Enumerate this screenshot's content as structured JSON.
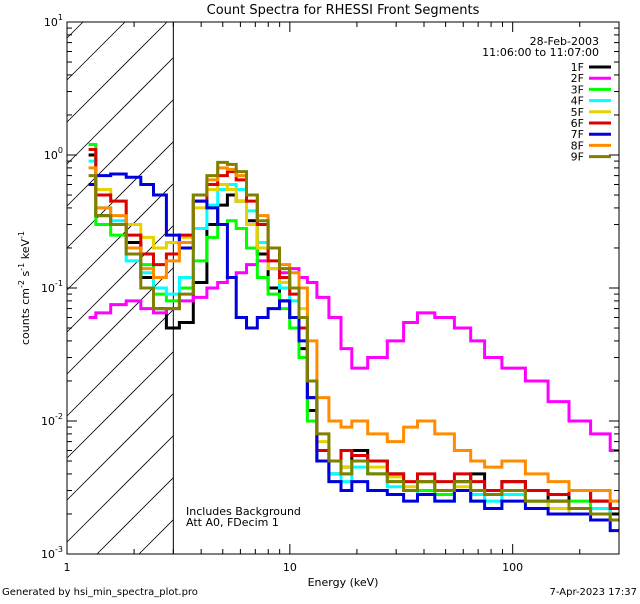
{
  "chart_data": {
    "type": "line",
    "title": "Count Spectra for RHESSI Front Segments",
    "xlabel": "Energy (keV)",
    "ylabel_main": "counts cm",
    "ylabel_exp1": "-2",
    "ylabel_mid": " s",
    "ylabel_exp2": "-1",
    "ylabel_end": " keV",
    "ylabel_exp3": "-1",
    "xscale": "log",
    "yscale": "log",
    "xlim": [
      1,
      300
    ],
    "ylim": [
      0.001,
      10
    ],
    "x_ticks": [
      {
        "value": 1,
        "label": "1"
      },
      {
        "value": 10,
        "label": "10"
      },
      {
        "value": 100,
        "label": "100"
      }
    ],
    "y_ticks": [
      {
        "value": 10,
        "base": "10",
        "exp": "1"
      },
      {
        "value": 1,
        "base": "10",
        "exp": "0"
      },
      {
        "value": 0.1,
        "base": "10",
        "exp": "-1"
      },
      {
        "value": 0.01,
        "base": "10",
        "exp": "-2"
      },
      {
        "value": 0.001,
        "base": "10",
        "exp": "-3"
      }
    ],
    "hatched_region_xmax": 3,
    "annotations": {
      "date": "28-Feb-2003",
      "time_range": "11:06:00 to 11:07:00",
      "background_note": "Includes Background",
      "attenuator_note": "Att A0, FDecim 1"
    },
    "footer": {
      "left": "Generated by hsi_min_spectra_plot.pro",
      "right": "7-Apr-2023 17:37"
    },
    "series": [
      {
        "name": "1F",
        "color": "#000000",
        "x": [
          1.25,
          1.45,
          1.7,
          2.0,
          2.3,
          2.6,
          3.0,
          3.4,
          4.0,
          4.5,
          5.0,
          5.5,
          6.0,
          6.8,
          7.5,
          8.5,
          9.5,
          10.5,
          11.5,
          12.5,
          14,
          16,
          18,
          20,
          25,
          30,
          35,
          40,
          50,
          60,
          70,
          80,
          100,
          130,
          160,
          200,
          250,
          300
        ],
        "y": [
          1.0,
          0.35,
          0.3,
          0.22,
          0.12,
          0.07,
          0.05,
          0.055,
          0.11,
          0.3,
          0.42,
          0.5,
          0.45,
          0.32,
          0.18,
          0.1,
          0.08,
          0.06,
          0.035,
          0.012,
          0.005,
          0.004,
          0.0045,
          0.006,
          0.005,
          0.004,
          0.003,
          0.0035,
          0.003,
          0.0035,
          0.004,
          0.003,
          0.0035,
          0.003,
          0.0025,
          0.003,
          0.0025,
          0.002
        ]
      },
      {
        "name": "2F",
        "color": "#ff00ff",
        "x": [
          1.25,
          1.45,
          1.7,
          2.0,
          2.3,
          2.6,
          3.0,
          3.4,
          4.0,
          4.5,
          5.0,
          5.5,
          6.0,
          6.8,
          7.5,
          8.5,
          9.5,
          10.5,
          11.5,
          12.5,
          14,
          16,
          18,
          20,
          25,
          30,
          35,
          40,
          50,
          60,
          70,
          80,
          100,
          130,
          160,
          200,
          250,
          300
        ],
        "y": [
          0.06,
          0.065,
          0.075,
          0.08,
          0.07,
          0.065,
          0.07,
          0.08,
          0.085,
          0.1,
          0.11,
          0.12,
          0.13,
          0.15,
          0.16,
          0.14,
          0.13,
          0.14,
          0.12,
          0.11,
          0.085,
          0.06,
          0.035,
          0.025,
          0.03,
          0.04,
          0.055,
          0.065,
          0.06,
          0.05,
          0.04,
          0.03,
          0.025,
          0.02,
          0.014,
          0.01,
          0.008,
          0.006
        ]
      },
      {
        "name": "3F",
        "color": "#00ff00",
        "x": [
          1.25,
          1.45,
          1.7,
          2.0,
          2.3,
          2.6,
          3.0,
          3.4,
          4.0,
          4.5,
          5.0,
          5.5,
          6.0,
          6.8,
          7.5,
          8.5,
          9.5,
          10.5,
          11.5,
          12.5,
          14,
          16,
          18,
          20,
          25,
          30,
          35,
          40,
          50,
          60,
          70,
          80,
          100,
          130,
          160,
          200,
          250,
          300
        ],
        "y": [
          1.2,
          0.3,
          0.25,
          0.2,
          0.15,
          0.09,
          0.08,
          0.1,
          0.16,
          0.24,
          0.3,
          0.32,
          0.28,
          0.2,
          0.12,
          0.09,
          0.07,
          0.05,
          0.03,
          0.01,
          0.005,
          0.0035,
          0.004,
          0.005,
          0.004,
          0.0035,
          0.003,
          0.003,
          0.0028,
          0.003,
          0.0025,
          0.0028,
          0.003,
          0.0025,
          0.0022,
          0.0025,
          0.002,
          0.0018
        ]
      },
      {
        "name": "4F",
        "color": "#00ffff",
        "x": [
          1.25,
          1.45,
          1.7,
          2.0,
          2.3,
          2.6,
          3.0,
          3.4,
          4.0,
          4.5,
          5.0,
          5.5,
          6.0,
          6.8,
          7.5,
          8.5,
          9.5,
          10.5,
          11.5,
          12.5,
          14,
          16,
          18,
          20,
          25,
          30,
          35,
          40,
          50,
          60,
          70,
          80,
          100,
          130,
          160,
          200,
          250,
          300
        ],
        "y": [
          0.9,
          0.4,
          0.32,
          0.16,
          0.13,
          0.1,
          0.09,
          0.12,
          0.28,
          0.42,
          0.55,
          0.6,
          0.55,
          0.38,
          0.22,
          0.14,
          0.1,
          0.08,
          0.05,
          0.015,
          0.006,
          0.004,
          0.0035,
          0.0045,
          0.004,
          0.0032,
          0.003,
          0.0028,
          0.0025,
          0.003,
          0.0028,
          0.0025,
          0.0028,
          0.0025,
          0.0022,
          0.002,
          0.0022,
          0.0018
        ]
      },
      {
        "name": "5F",
        "color": "#e6d200",
        "x": [
          1.25,
          1.45,
          1.7,
          2.0,
          2.3,
          2.6,
          3.0,
          3.4,
          4.0,
          4.5,
          5.0,
          5.5,
          6.0,
          6.8,
          7.5,
          8.5,
          9.5,
          10.5,
          11.5,
          12.5,
          14,
          16,
          18,
          20,
          25,
          30,
          35,
          40,
          50,
          60,
          70,
          80,
          100,
          130,
          160,
          200,
          250,
          300
        ],
        "y": [
          0.6,
          0.55,
          0.45,
          0.3,
          0.24,
          0.2,
          0.22,
          0.24,
          0.4,
          0.55,
          0.6,
          0.55,
          0.45,
          0.3,
          0.2,
          0.14,
          0.11,
          0.1,
          0.07,
          0.02,
          0.007,
          0.005,
          0.0045,
          0.005,
          0.0045,
          0.0038,
          0.0032,
          0.0035,
          0.003,
          0.0032,
          0.003,
          0.0028,
          0.003,
          0.0025,
          0.0022,
          0.002,
          0.002,
          0.0018
        ]
      },
      {
        "name": "6F",
        "color": "#dd0000",
        "x": [
          1.25,
          1.45,
          1.7,
          2.0,
          2.3,
          2.6,
          3.0,
          3.4,
          4.0,
          4.5,
          5.0,
          5.5,
          6.0,
          6.8,
          7.5,
          8.5,
          9.5,
          10.5,
          11.5,
          12.5,
          14,
          16,
          18,
          20,
          25,
          30,
          35,
          40,
          50,
          60,
          70,
          80,
          100,
          130,
          160,
          200,
          250,
          300
        ],
        "y": [
          1.1,
          0.5,
          0.45,
          0.25,
          0.18,
          0.15,
          0.18,
          0.25,
          0.45,
          0.6,
          0.7,
          0.75,
          0.65,
          0.45,
          0.3,
          0.16,
          0.12,
          0.09,
          0.05,
          0.015,
          0.006,
          0.005,
          0.006,
          0.0055,
          0.005,
          0.004,
          0.0035,
          0.004,
          0.0035,
          0.004,
          0.0035,
          0.003,
          0.0035,
          0.003,
          0.0028,
          0.003,
          0.0025,
          0.0022
        ]
      },
      {
        "name": "7F",
        "color": "#0000dd",
        "x": [
          1.25,
          1.45,
          1.7,
          2.0,
          2.3,
          2.6,
          3.0,
          3.4,
          4.0,
          4.5,
          5.0,
          5.5,
          6.0,
          6.8,
          7.5,
          8.5,
          9.5,
          10.5,
          11.5,
          12.5,
          14,
          16,
          18,
          20,
          25,
          30,
          35,
          40,
          50,
          60,
          70,
          80,
          100,
          130,
          160,
          200,
          250,
          300
        ],
        "y": [
          0.6,
          0.7,
          0.72,
          0.68,
          0.6,
          0.5,
          0.25,
          0.2,
          0.45,
          0.4,
          0.3,
          0.12,
          0.06,
          0.05,
          0.06,
          0.07,
          0.08,
          0.06,
          0.04,
          0.015,
          0.005,
          0.0035,
          0.003,
          0.0035,
          0.003,
          0.0028,
          0.0025,
          0.0028,
          0.0025,
          0.003,
          0.0025,
          0.0022,
          0.0025,
          0.0022,
          0.002,
          0.002,
          0.0018,
          0.0015
        ]
      },
      {
        "name": "8F",
        "color": "#ff8c00",
        "x": [
          1.25,
          1.45,
          1.7,
          2.0,
          2.3,
          2.6,
          3.0,
          3.4,
          4.0,
          4.5,
          5.0,
          5.5,
          6.0,
          6.8,
          7.5,
          8.5,
          9.5,
          10.5,
          11.5,
          12.5,
          14,
          16,
          18,
          20,
          25,
          30,
          35,
          40,
          50,
          60,
          70,
          80,
          100,
          130,
          160,
          200,
          250,
          300
        ],
        "y": [
          0.8,
          0.4,
          0.35,
          0.2,
          0.14,
          0.12,
          0.16,
          0.22,
          0.5,
          0.65,
          0.8,
          0.78,
          0.7,
          0.5,
          0.35,
          0.2,
          0.15,
          0.13,
          0.1,
          0.04,
          0.015,
          0.01,
          0.009,
          0.01,
          0.008,
          0.007,
          0.009,
          0.01,
          0.008,
          0.006,
          0.005,
          0.0045,
          0.005,
          0.004,
          0.0035,
          0.003,
          0.003,
          0.0025
        ]
      },
      {
        "name": "9F",
        "color": "#808000",
        "x": [
          1.25,
          1.45,
          1.7,
          2.0,
          2.3,
          2.6,
          3.0,
          3.4,
          4.0,
          4.5,
          5.0,
          5.5,
          6.0,
          6.8,
          7.5,
          8.5,
          9.5,
          10.5,
          11.5,
          12.5,
          14,
          16,
          18,
          20,
          25,
          30,
          35,
          40,
          50,
          60,
          70,
          80,
          100,
          130,
          160,
          200,
          250,
          300
        ],
        "y": [
          0.7,
          0.35,
          0.3,
          0.18,
          0.1,
          0.07,
          0.07,
          0.09,
          0.5,
          0.7,
          0.88,
          0.85,
          0.75,
          0.5,
          0.32,
          0.2,
          0.14,
          0.1,
          0.06,
          0.02,
          0.008,
          0.005,
          0.004,
          0.005,
          0.004,
          0.0035,
          0.003,
          0.0035,
          0.003,
          0.0035,
          0.003,
          0.0028,
          0.003,
          0.0025,
          0.0025,
          0.0022,
          0.002,
          0.0018
        ]
      }
    ]
  }
}
